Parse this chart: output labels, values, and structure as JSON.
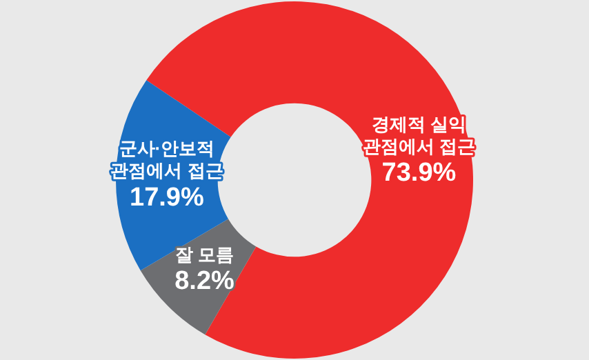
{
  "chart_data": {
    "type": "donut",
    "categories": [
      "경제적 실익 관점에서 접근",
      "잘 모름",
      "군사·안보적 관점에서 접근"
    ],
    "values": [
      73.9,
      8.2,
      17.9
    ],
    "colors": [
      "#ee2c2c",
      "#6d6e71",
      "#1b6fc2"
    ],
    "value_labels": [
      "73.9%",
      "8.2%",
      "17.9%"
    ],
    "legend": false
  }
}
